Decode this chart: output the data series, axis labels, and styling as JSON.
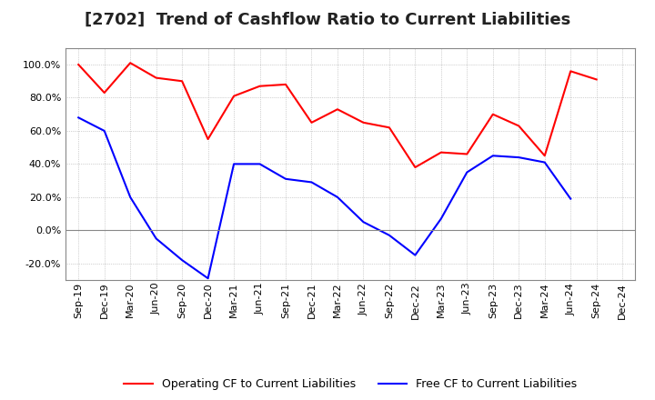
{
  "title": "[2702]  Trend of Cashflow Ratio to Current Liabilities",
  "x_labels": [
    "Sep-19",
    "Dec-19",
    "Mar-20",
    "Jun-20",
    "Sep-20",
    "Dec-20",
    "Mar-21",
    "Jun-21",
    "Sep-21",
    "Dec-21",
    "Mar-22",
    "Jun-22",
    "Sep-22",
    "Dec-22",
    "Mar-23",
    "Jun-23",
    "Sep-23",
    "Dec-23",
    "Mar-24",
    "Jun-24",
    "Sep-24",
    "Dec-24"
  ],
  "operating_cf": [
    100.0,
    83.0,
    101.0,
    92.0,
    90.0,
    55.0,
    81.0,
    87.0,
    88.0,
    65.0,
    73.0,
    65.0,
    62.0,
    38.0,
    47.0,
    46.0,
    70.0,
    63.0,
    45.0,
    96.0,
    91.0,
    null
  ],
  "free_cf": [
    68.0,
    60.0,
    20.0,
    -5.0,
    -18.0,
    -29.0,
    40.0,
    40.0,
    31.0,
    29.0,
    20.0,
    5.0,
    -3.0,
    -15.0,
    7.0,
    35.0,
    45.0,
    44.0,
    41.0,
    19.0,
    null,
    null
  ],
  "ylim": [
    -30,
    110
  ],
  "yticks": [
    -20.0,
    0.0,
    20.0,
    40.0,
    60.0,
    80.0,
    100.0
  ],
  "operating_color": "#FF0000",
  "free_color": "#0000FF",
  "background_color": "#FFFFFF",
  "grid_color": "#AAAAAA",
  "legend_operating": "Operating CF to Current Liabilities",
  "legend_free": "Free CF to Current Liabilities",
  "title_fontsize": 13,
  "tick_fontsize": 8,
  "legend_fontsize": 9
}
